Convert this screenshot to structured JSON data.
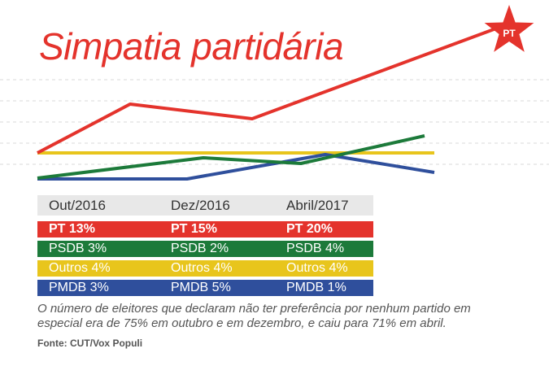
{
  "title": "Simpatia partidária",
  "chart_data": {
    "type": "line",
    "periods": [
      "Out/2016",
      "Dez/2016",
      "Abril/2017"
    ],
    "series": [
      {
        "name": "PT",
        "color": "#e4332c",
        "values": [
          13,
          15,
          20
        ],
        "labels": [
          "PT 13%",
          "PT 15%",
          "PT 20%"
        ]
      },
      {
        "name": "PSDB",
        "color": "#1c7a3a",
        "values": [
          3,
          2,
          4
        ],
        "labels": [
          "PSDB 3%",
          "PSDB 2%",
          "PSDB 4%"
        ]
      },
      {
        "name": "Outros",
        "color": "#e8c51c",
        "values": [
          4,
          4,
          4
        ],
        "labels": [
          "Outros 4%",
          "Outros 4%",
          "Outros 4%"
        ]
      },
      {
        "name": "PMDB",
        "color": "#2f4f9c",
        "values": [
          3,
          5,
          1
        ],
        "labels": [
          "PMDB 3%",
          "PMDB 5%",
          "PMDB 1%"
        ]
      }
    ],
    "star_label": "PT"
  },
  "note": "O número de eleitores que declaram não ter preferência por nenhum partido em especial era de 75% em outubro e em dezembro, e caiu para 71% em abril.",
  "source": "Fonte: CUT/Vox Populi"
}
